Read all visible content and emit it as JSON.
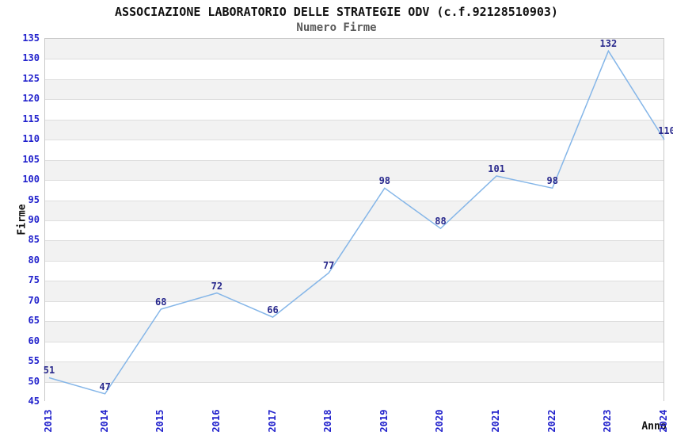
{
  "chart_data": {
    "type": "line",
    "title": "ASSOCIAZIONE LABORATORIO DELLE STRATEGIE ODV (c.f.92128510903)",
    "subtitle": "Numero Firme",
    "xlabel": "Anno",
    "ylabel": "Firme",
    "x": [
      "2013",
      "2014",
      "2015",
      "2016",
      "2017",
      "2018",
      "2019",
      "2020",
      "2021",
      "2022",
      "2023",
      "2024"
    ],
    "values": [
      51,
      47,
      68,
      72,
      66,
      77,
      98,
      88,
      101,
      98,
      132,
      110
    ],
    "ylim": [
      45,
      135
    ],
    "ytick_step": 5,
    "ytick_labels": [
      "45",
      "50",
      "55",
      "60",
      "65",
      "70",
      "75",
      "80",
      "85",
      "90",
      "95",
      "100",
      "105",
      "110",
      "115",
      "120",
      "125",
      "130",
      "135"
    ],
    "grid": "horizontal-bands-alternating",
    "legend_position": "none",
    "markers": "none",
    "colors": {
      "line": "#85b6e8",
      "tick_label": "#2121cc",
      "data_label": "#28288c",
      "band_gray": "#f2f2f2",
      "band_white": "#ffffff",
      "gridline": "#dedede",
      "plot_border": "#c9c9c9",
      "title_text": "#111111",
      "subtitle_text": "#5a5a5a"
    }
  }
}
